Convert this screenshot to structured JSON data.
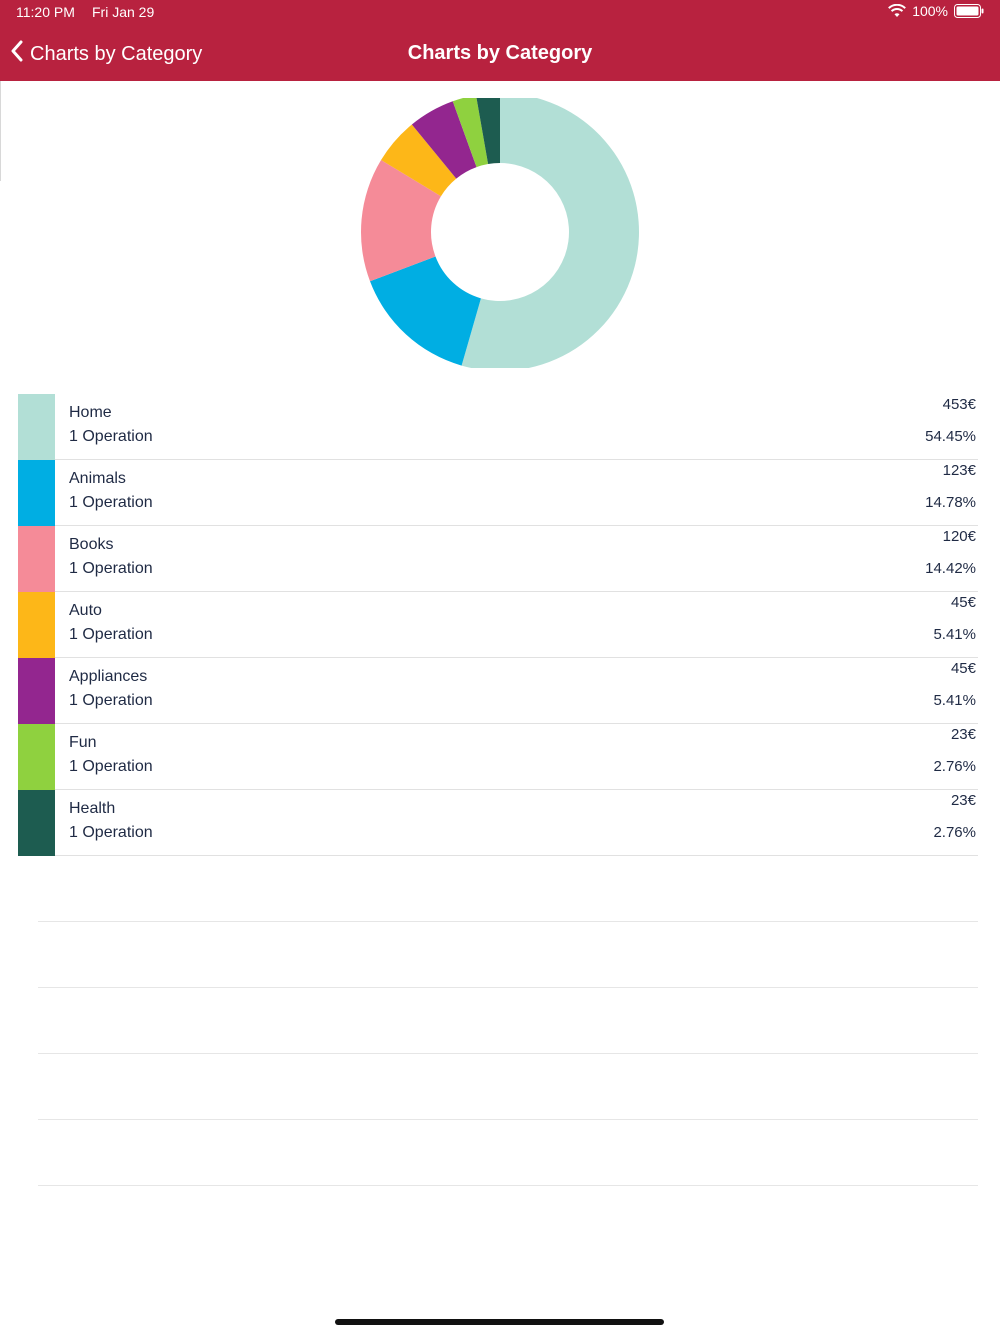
{
  "status_bar": {
    "time": "11:20 PM",
    "date": "Fri Jan 29",
    "battery": "100%"
  },
  "nav": {
    "back_label": "Charts by Category",
    "title": "Charts by Category"
  },
  "colors": {
    "header": "#b8223f"
  },
  "chart_data": {
    "type": "pie",
    "categories": [
      "Home",
      "Animals",
      "Books",
      "Auto",
      "Appliances",
      "Fun",
      "Health"
    ],
    "values": [
      54.45,
      14.78,
      14.42,
      5.41,
      5.41,
      2.76,
      2.76
    ],
    "colors": [
      "#b2dfd6",
      "#00aee3",
      "#f58b98",
      "#fdb718",
      "#93268f",
      "#8fd13f",
      "#1d5c50"
    ],
    "donut": true,
    "start": "top",
    "direction": "clockwise"
  },
  "categories": [
    {
      "name": "Home",
      "operations": "1 Operation",
      "amount": "453€",
      "percent": "54.45%",
      "color": "#b2dfd6"
    },
    {
      "name": "Animals",
      "operations": "1 Operation",
      "amount": "123€",
      "percent": "14.78%",
      "color": "#00aee3"
    },
    {
      "name": "Books",
      "operations": "1 Operation",
      "amount": "120€",
      "percent": "14.42%",
      "color": "#f58b98"
    },
    {
      "name": "Auto",
      "operations": "1 Operation",
      "amount": "45€",
      "percent": "5.41%",
      "color": "#fdb718"
    },
    {
      "name": "Appliances",
      "operations": "1 Operation",
      "amount": "45€",
      "percent": "5.41%",
      "color": "#93268f"
    },
    {
      "name": "Fun",
      "operations": "1 Operation",
      "amount": "23€",
      "percent": "2.76%",
      "color": "#8fd13f"
    },
    {
      "name": "Health",
      "operations": "1 Operation",
      "amount": "23€",
      "percent": "2.76%",
      "color": "#1d5c50"
    }
  ]
}
